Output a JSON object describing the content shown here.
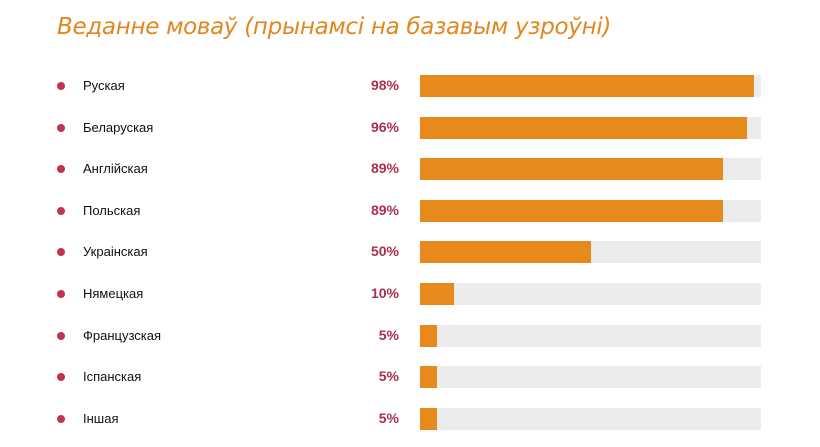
{
  "chart_data": {
    "type": "bar",
    "orientation": "horizontal",
    "title": "Веданне моваў (прынамсі на базавым узроўні)",
    "categories": [
      "Руская",
      "Беларуская",
      "Англійская",
      "Польская",
      "Украінская",
      "Нямецкая",
      "Французская",
      "Іспанская",
      "Іншая"
    ],
    "values": [
      98,
      96,
      89,
      89,
      50,
      10,
      5,
      5,
      5
    ],
    "value_labels": [
      "98%",
      "96%",
      "89%",
      "89%",
      "50%",
      "10%",
      "5%",
      "5%",
      "5%"
    ],
    "xlim": [
      0,
      100
    ],
    "grid": false,
    "colors": {
      "bar": "#e8891c",
      "track": "#ececec",
      "title": "#e3861d",
      "value_text": "#a8304f",
      "bullet": "#c0344f"
    }
  }
}
